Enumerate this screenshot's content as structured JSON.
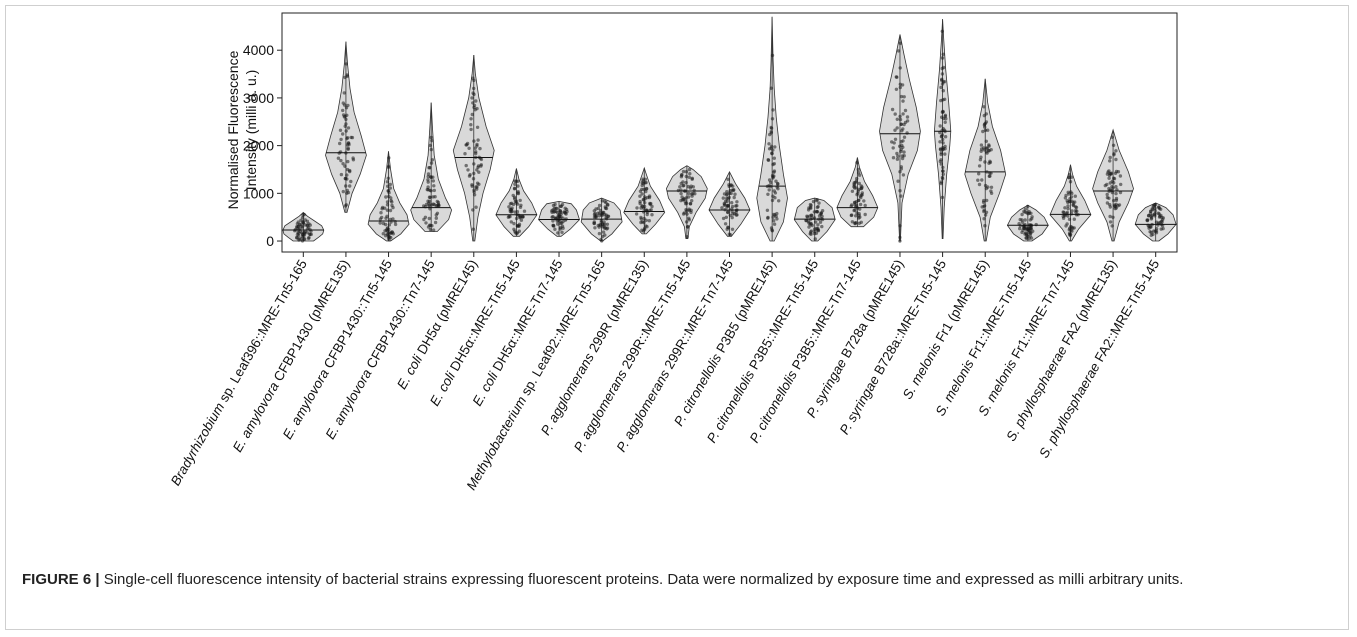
{
  "caption": {
    "label": "FIGURE 6 |",
    "text": "Single-cell fluorescence intensity of bacterial strains expressing fluorescent proteins. Data were normalized by exposure time and expressed as milli arbitrary units."
  },
  "chart_data": {
    "type": "violin",
    "title": "",
    "xlabel": "",
    "ylabel_lines": [
      "Normalised Fluorescence",
      "Intensity (milli a. u.)"
    ],
    "ylim": [
      -230,
      4780
    ],
    "yticks": [
      0,
      1000,
      2000,
      3000,
      4000
    ],
    "grid": false,
    "colors": {
      "violin_fill": "#d9d9d9",
      "violin_stroke": "#333333",
      "points": "#1a1a1a"
    },
    "categories": [
      {
        "text": "Bradyrhizobium sp. Leaf396::MRE-Tn5-165",
        "pre": "",
        "it": "Bradyrhizobium",
        "post": " sp. Leaf396::MRE-Tn5-165"
      },
      {
        "text": "E. amylovora CFBP1430 (pMRE135)",
        "pre": "",
        "it": "E. amylovora",
        "post": " CFBP1430 (pMRE135)"
      },
      {
        "text": "E. amylovora CFBP1430::Tn5-145",
        "pre": "",
        "it": "E. amylovora",
        "post": " CFBP1430::Tn5-145"
      },
      {
        "text": "E. amylovora CFBP1430::Tn7-145",
        "pre": "",
        "it": "E. amylovora",
        "post": " CFBP1430::Tn7-145"
      },
      {
        "text": "E. coli DH5α (pMRE145)",
        "pre": "",
        "it": "E. coli",
        "post": " DH5α (pMRE145)"
      },
      {
        "text": "E. coli DH5α::MRE-Tn5-145",
        "pre": "",
        "it": "E. coli",
        "post": " DH5α::MRE-Tn5-145"
      },
      {
        "text": "E. coli DH5α::MRE-Tn7-145",
        "pre": "",
        "it": "E. coli",
        "post": " DH5α::MRE-Tn7-145"
      },
      {
        "text": "Methylobacterium sp. Leaf92::MRE-Tn5-165",
        "pre": "",
        "it": "Methylobacterium",
        "post": " sp. Leaf92::MRE-Tn5-165"
      },
      {
        "text": "P. agglomerans 299R (pMRE135)",
        "pre": "",
        "it": "P. agglomerans",
        "post": " 299R (pMRE135)"
      },
      {
        "text": "P. agglomerans 299R::MRE-Tn5-145",
        "pre": "",
        "it": "P. agglomerans",
        "post": " 299R::MRE-Tn5-145"
      },
      {
        "text": "P. agglomerans 299R::MRE-Tn7-145",
        "pre": "",
        "it": "P. agglomerans",
        "post": " 299R::MRE-Tn7-145"
      },
      {
        "text": "P. citronellolis P3B5 (pMRE145)",
        "pre": "",
        "it": "P. citronellolis",
        "post": " P3B5 (pMRE145)"
      },
      {
        "text": "P. citronellolis P3B5::MRE-Tn5-145",
        "pre": "",
        "it": "P. citronellolis",
        "post": " P3B5::MRE-Tn5-145"
      },
      {
        "text": "P. citronellolis P3B5::MRE-Tn7-145",
        "pre": "",
        "it": "P. citronellolis",
        "post": " P3B5::MRE-Tn7-145"
      },
      {
        "text": "P. syringae B728a (pMRE145)",
        "pre": "",
        "it": "P. syringae",
        "post": " B728a (pMRE145)"
      },
      {
        "text": "P. syringae B728a::MRE-Tn5-145",
        "pre": "",
        "it": "P. syringae",
        "post": " B728a::MRE-Tn5-145"
      },
      {
        "text": "S. melonis Fr1 (pMRE145)",
        "pre": "",
        "it": "S. melonis",
        "post": " Fr1 (pMRE145)"
      },
      {
        "text": "S. melonis Fr1::MRE-Tn5-145",
        "pre": "",
        "it": "S. melonis",
        "post": " Fr1::MRE-Tn5-145"
      },
      {
        "text": "S. melonis Fr1::MRE-Tn7-145",
        "pre": "",
        "it": "S. melonis",
        "post": " Fr1::MRE-Tn7-145"
      },
      {
        "text": "S. phyllosphaerae FA2 (pMRE135)",
        "pre": "",
        "it": "S. phyllosphaerae",
        "post": " FA2 (pMRE135)"
      },
      {
        "text": "S. phyllosphaerae FA2::MRE-Tn5-145",
        "pre": "",
        "it": "S. phyllosphaerae",
        "post": " FA2::MRE-Tn5-145"
      }
    ],
    "violins": [
      {
        "min": 0,
        "max": 600,
        "median": 230,
        "shape": [
          [
            0,
            0.5
          ],
          [
            80,
            0.75
          ],
          [
            150,
            0.95
          ],
          [
            230,
            1.0
          ],
          [
            320,
            0.9
          ],
          [
            420,
            0.55
          ],
          [
            520,
            0.2
          ],
          [
            600,
            0
          ]
        ]
      },
      {
        "min": 600,
        "max": 4180,
        "median": 1850,
        "shape": [
          [
            600,
            0.05
          ],
          [
            1000,
            0.3
          ],
          [
            1400,
            0.7
          ],
          [
            1800,
            1.0
          ],
          [
            2200,
            0.75
          ],
          [
            2700,
            0.4
          ],
          [
            3200,
            0.2
          ],
          [
            3700,
            0.08
          ],
          [
            4180,
            0
          ]
        ]
      },
      {
        "min": 0,
        "max": 1880,
        "median": 420,
        "shape": [
          [
            0,
            0.1
          ],
          [
            150,
            0.6
          ],
          [
            350,
            1.0
          ],
          [
            550,
            0.9
          ],
          [
            800,
            0.55
          ],
          [
            1100,
            0.25
          ],
          [
            1500,
            0.1
          ],
          [
            1880,
            0
          ]
        ]
      },
      {
        "min": 200,
        "max": 2900,
        "median": 700,
        "shape": [
          [
            200,
            0.3
          ],
          [
            450,
            0.85
          ],
          [
            650,
            1.0
          ],
          [
            900,
            0.7
          ],
          [
            1300,
            0.35
          ],
          [
            1800,
            0.15
          ],
          [
            2400,
            0.06
          ],
          [
            2900,
            0
          ]
        ]
      },
      {
        "min": 0,
        "max": 3900,
        "median": 1750,
        "shape": [
          [
            0,
            0.05
          ],
          [
            500,
            0.2
          ],
          [
            1000,
            0.45
          ],
          [
            1500,
            0.8
          ],
          [
            1900,
            1.0
          ],
          [
            2400,
            0.6
          ],
          [
            3000,
            0.25
          ],
          [
            3500,
            0.08
          ],
          [
            3900,
            0
          ]
        ]
      },
      {
        "min": 100,
        "max": 1520,
        "median": 550,
        "shape": [
          [
            100,
            0.15
          ],
          [
            300,
            0.6
          ],
          [
            550,
            1.0
          ],
          [
            800,
            0.75
          ],
          [
            1050,
            0.35
          ],
          [
            1300,
            0.12
          ],
          [
            1520,
            0
          ]
        ]
      },
      {
        "min": 100,
        "max": 830,
        "median": 450,
        "shape": [
          [
            100,
            0.1
          ],
          [
            250,
            0.55
          ],
          [
            450,
            1.0
          ],
          [
            650,
            0.85
          ],
          [
            780,
            0.6
          ],
          [
            830,
            0
          ]
        ]
      },
      {
        "min": 0,
        "max": 900,
        "median": 460,
        "shape": [
          [
            0,
            0.05
          ],
          [
            150,
            0.5
          ],
          [
            400,
            1.0
          ],
          [
            650,
            0.9
          ],
          [
            800,
            0.6
          ],
          [
            900,
            0
          ]
        ]
      },
      {
        "min": 150,
        "max": 1530,
        "median": 620,
        "shape": [
          [
            150,
            0.1
          ],
          [
            350,
            0.55
          ],
          [
            600,
            1.0
          ],
          [
            850,
            0.75
          ],
          [
            1150,
            0.3
          ],
          [
            1400,
            0.1
          ],
          [
            1530,
            0
          ]
        ]
      },
      {
        "min": 50,
        "max": 1580,
        "median": 1050,
        "shape": [
          [
            50,
            0.05
          ],
          [
            300,
            0.12
          ],
          [
            600,
            0.45
          ],
          [
            900,
            0.9
          ],
          [
            1100,
            1.0
          ],
          [
            1350,
            0.7
          ],
          [
            1500,
            0.3
          ],
          [
            1580,
            0
          ]
        ]
      },
      {
        "min": 100,
        "max": 1450,
        "median": 650,
        "shape": [
          [
            100,
            0.1
          ],
          [
            350,
            0.55
          ],
          [
            650,
            1.0
          ],
          [
            900,
            0.75
          ],
          [
            1200,
            0.3
          ],
          [
            1450,
            0
          ]
        ]
      },
      {
        "min": 0,
        "max": 4700,
        "median": 1150,
        "shape": [
          [
            0,
            0.1
          ],
          [
            400,
            0.55
          ],
          [
            900,
            0.75
          ],
          [
            1400,
            0.55
          ],
          [
            2000,
            0.35
          ],
          [
            2600,
            0.2
          ],
          [
            3200,
            0.1
          ],
          [
            3800,
            0.05
          ],
          [
            4700,
            0
          ]
        ]
      },
      {
        "min": 0,
        "max": 900,
        "median": 460,
        "shape": [
          [
            0,
            0.15
          ],
          [
            200,
            0.6
          ],
          [
            450,
            1.0
          ],
          [
            700,
            0.85
          ],
          [
            850,
            0.45
          ],
          [
            900,
            0
          ]
        ]
      },
      {
        "min": 300,
        "max": 1750,
        "median": 700,
        "shape": [
          [
            300,
            0.3
          ],
          [
            500,
            0.8
          ],
          [
            700,
            1.0
          ],
          [
            950,
            0.75
          ],
          [
            1250,
            0.35
          ],
          [
            1550,
            0.1
          ],
          [
            1750,
            0
          ]
        ]
      },
      {
        "min": 0,
        "max": 4330,
        "median": 2250,
        "shape": [
          [
            0,
            0.02
          ],
          [
            800,
            0.1
          ],
          [
            1400,
            0.4
          ],
          [
            1900,
            0.85
          ],
          [
            2300,
            1.0
          ],
          [
            2800,
            0.8
          ],
          [
            3400,
            0.45
          ],
          [
            3900,
            0.2
          ],
          [
            4330,
            0
          ]
        ]
      },
      {
        "min": 50,
        "max": 4650,
        "median": 2300,
        "shape": [
          [
            50,
            0.02
          ],
          [
            700,
            0.08
          ],
          [
            1400,
            0.2
          ],
          [
            2000,
            0.35
          ],
          [
            2300,
            0.4
          ],
          [
            2900,
            0.3
          ],
          [
            3600,
            0.15
          ],
          [
            4200,
            0.06
          ],
          [
            4650,
            0
          ]
        ]
      },
      {
        "min": 0,
        "max": 3400,
        "median": 1450,
        "shape": [
          [
            0,
            0.05
          ],
          [
            500,
            0.25
          ],
          [
            1000,
            0.7
          ],
          [
            1400,
            1.0
          ],
          [
            1900,
            0.75
          ],
          [
            2400,
            0.35
          ],
          [
            2900,
            0.12
          ],
          [
            3400,
            0
          ]
        ]
      },
      {
        "min": 0,
        "max": 750,
        "median": 330,
        "shape": [
          [
            0,
            0.2
          ],
          [
            150,
            0.7
          ],
          [
            330,
            1.0
          ],
          [
            500,
            0.8
          ],
          [
            650,
            0.4
          ],
          [
            750,
            0
          ]
        ]
      },
      {
        "min": 0,
        "max": 1600,
        "median": 560,
        "shape": [
          [
            0,
            0.05
          ],
          [
            250,
            0.4
          ],
          [
            550,
            1.0
          ],
          [
            850,
            0.7
          ],
          [
            1150,
            0.3
          ],
          [
            1400,
            0.1
          ],
          [
            1600,
            0
          ]
        ]
      },
      {
        "min": 0,
        "max": 2330,
        "median": 1050,
        "shape": [
          [
            0,
            0.05
          ],
          [
            400,
            0.3
          ],
          [
            800,
            0.75
          ],
          [
            1100,
            1.0
          ],
          [
            1450,
            0.75
          ],
          [
            1900,
            0.3
          ],
          [
            2330,
            0
          ]
        ]
      },
      {
        "min": 0,
        "max": 800,
        "median": 350,
        "shape": [
          [
            0,
            0.15
          ],
          [
            150,
            0.6
          ],
          [
            350,
            1.0
          ],
          [
            550,
            0.85
          ],
          [
            700,
            0.5
          ],
          [
            800,
            0
          ]
        ]
      }
    ]
  }
}
